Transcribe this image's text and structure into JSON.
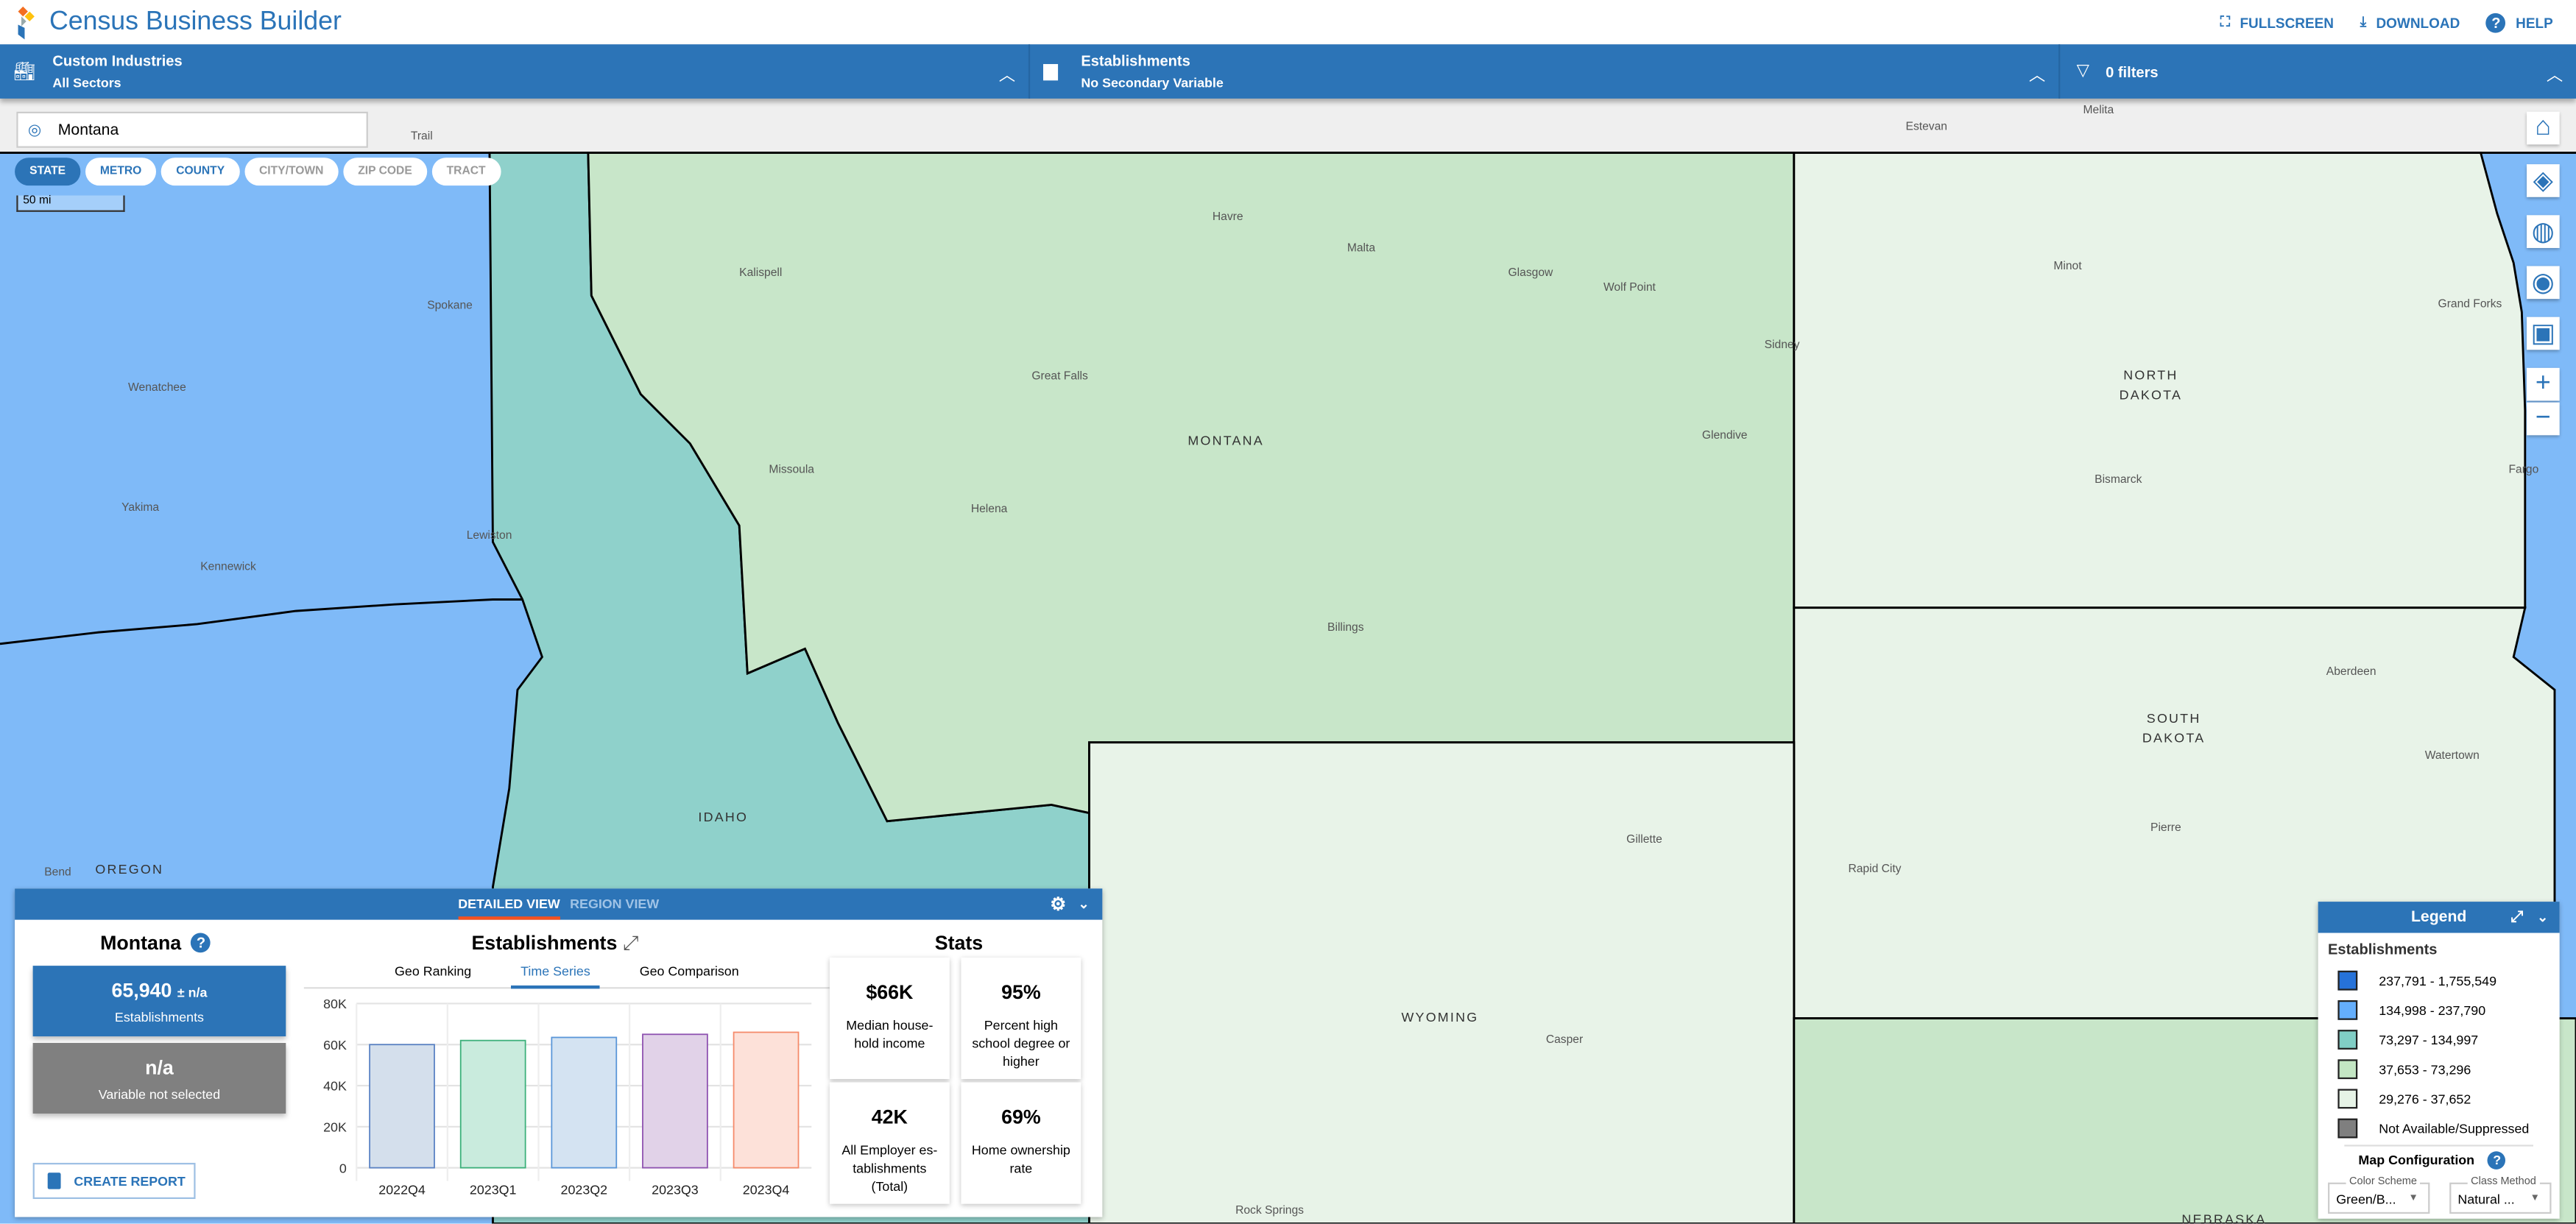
{
  "app": {
    "title": "Census Business Builder",
    "links": [
      {
        "label": "FULLSCREEN",
        "icon": "fullscreen-icon"
      },
      {
        "label": "DOWNLOAD",
        "icon": "download-icon"
      },
      {
        "label": "HELP",
        "icon": "help-icon"
      }
    ]
  },
  "nav": {
    "industry": {
      "title": "Custom Industries",
      "subtitle": "All Sectors"
    },
    "variable": {
      "title": "Establishments",
      "subtitle": "No Secondary Variable"
    },
    "filters": {
      "label": "0 filters"
    }
  },
  "map": {
    "search_value": "Montana",
    "geo_levels": [
      {
        "label": "STATE",
        "active": true
      },
      {
        "label": "METRO"
      },
      {
        "label": "COUNTY"
      },
      {
        "label": "CITY/TOWN",
        "disabled": true
      },
      {
        "label": "ZIP CODE",
        "disabled": true
      },
      {
        "label": "TRACT",
        "disabled": true
      }
    ],
    "scale": "50 mi",
    "states": [
      "MONTANA",
      "IDAHO",
      "NORTH DAKOTA",
      "SOUTH DAKOTA",
      "WYOMING",
      "NEBRASKA",
      "OREGON"
    ],
    "cities": [
      "Trail",
      "Estevan",
      "Melita",
      "Havre",
      "Kalispell",
      "Malta",
      "Glasgow",
      "Wolf Point",
      "Minot",
      "Grand Forks",
      "Spokane",
      "Wenatchee",
      "Sidney",
      "Great Falls",
      "Glendive",
      "Missoula",
      "Helena",
      "Bismarck",
      "Fargo",
      "Yakima",
      "Lewiston",
      "Kennewick",
      "Billings",
      "Aberdeen",
      "Watertown",
      "Pierre",
      "Rapid City",
      "Gillette",
      "Bend",
      "Casper",
      "Rock Springs"
    ],
    "colors": {
      "c1": "#2672d9",
      "c2": "#64aefc",
      "c3": "#80cec5",
      "c4": "#c3e6c3",
      "c5": "#e6f3e6",
      "na": "#7f7f7f"
    }
  },
  "panel": {
    "tabs": [
      "DETAILED VIEW",
      "REGION VIEW"
    ],
    "geo_name": "Montana",
    "primary": {
      "value": "65,940",
      "moe": "± n/a",
      "label": "Establishments"
    },
    "secondary": {
      "value": "n/a",
      "label": "Variable not selected"
    },
    "create_report": "CREATE REPORT",
    "chart_title": "Establishments",
    "chart_tabs": [
      "Geo Ranking",
      "Time Series",
      "Geo Comparison"
    ],
    "active_chart_tab": "Time Series",
    "stats_title": "Stats",
    "stats": [
      {
        "value": "$66K",
        "label": "Median house-hold income"
      },
      {
        "value": "95%",
        "label": "Percent high school degree or higher"
      },
      {
        "value": "42K",
        "label": "All Employer es-tablishments (Total)"
      },
      {
        "value": "69%",
        "label": "Home ownership rate"
      }
    ]
  },
  "chart_data": {
    "type": "bar",
    "title": "Establishments",
    "categories": [
      "2022Q4",
      "2023Q1",
      "2023Q2",
      "2023Q3",
      "2023Q4"
    ],
    "values": [
      60000,
      62000,
      63500,
      65000,
      66000
    ],
    "ylim": [
      0,
      80000
    ],
    "yticks": [
      "0",
      "20K",
      "40K",
      "60K",
      "80K"
    ],
    "grid": true,
    "colors": [
      {
        "fill": "#d4dfec",
        "stroke": "#5a82c4"
      },
      {
        "fill": "#c9ebdd",
        "stroke": "#3bb07a"
      },
      {
        "fill": "#d4e3f2",
        "stroke": "#5a96d8"
      },
      {
        "fill": "#e1d2e8",
        "stroke": "#8e52b0"
      },
      {
        "fill": "#fde1d9",
        "stroke": "#f58a6a"
      }
    ]
  },
  "legend": {
    "title": "Legend",
    "variable": "Establishments",
    "classes": [
      {
        "label": "237,791 - 1,755,549",
        "color": "#2672d9"
      },
      {
        "label": "134,998 - 237,790",
        "color": "#64aefc"
      },
      {
        "label": "73,297 - 134,997",
        "color": "#80cec5"
      },
      {
        "label": "37,653 - 73,296",
        "color": "#c3e6c3"
      },
      {
        "label": "29,276 - 37,652",
        "color": "#e6f3e6"
      },
      {
        "label": "Not Available/Suppressed",
        "color": "#7f7f7f"
      }
    ],
    "config_title": "Map Configuration",
    "color_scheme": {
      "caption": "Color Scheme",
      "value": "Green/B..."
    },
    "class_method": {
      "caption": "Class Method",
      "value": "Natural ..."
    }
  }
}
